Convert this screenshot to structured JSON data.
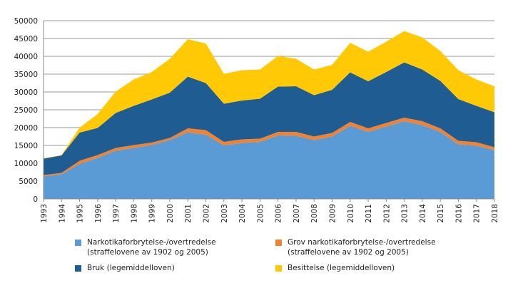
{
  "chart_data": {
    "type": "area",
    "stacked": true,
    "title": "",
    "xlabel": "",
    "ylabel": "",
    "ylim": [
      0,
      50000
    ],
    "yticks": [
      0,
      5000,
      10000,
      15000,
      20000,
      25000,
      30000,
      35000,
      40000,
      45000,
      50000
    ],
    "ytick_labels": [
      "0",
      "5000",
      "10000",
      "15000",
      "20000",
      "25000",
      "30000",
      "35000",
      "40000",
      "45000",
      "50000"
    ],
    "grid": "horizontal",
    "legend_position": "bottom",
    "x": [
      "1993",
      "1994",
      "1995",
      "1996",
      "1997",
      "1998",
      "1999",
      "2000",
      "2001",
      "2002",
      "2003",
      "2004",
      "2005",
      "2006",
      "2007",
      "2008",
      "2009",
      "2010",
      "2011",
      "2012",
      "2013",
      "2014",
      "2015",
      "2016",
      "2017",
      "2018"
    ],
    "series": [
      {
        "name": "Narkotikaforbrytelse-/overtredelse (straffelovene av 1902 og 2005)",
        "legend_lines": [
          "Narkotikaforbrytelse-/overtredelse",
          "(straffelovene av 1902 og 2005)"
        ],
        "color": "#5B9BD5",
        "values": [
          6300,
          6900,
          9800,
          11500,
          13500,
          14300,
          15100,
          16500,
          18700,
          18000,
          15000,
          15700,
          16000,
          17800,
          17700,
          16500,
          17500,
          20500,
          18800,
          20300,
          21800,
          20700,
          18800,
          15300,
          14900,
          13700
        ]
      },
      {
        "name": "Grov narkotikaforbrytelse-/overtredelse (straffelovene av 1902 og 2005)",
        "legend_lines": [
          "Grov narkotikaforbrytelse-/overtredelse",
          "(straffelovene av 1902 og 2005)"
        ],
        "color": "#F08232",
        "values": [
          400,
          400,
          900,
          800,
          800,
          800,
          700,
          600,
          1100,
          1300,
          1000,
          1000,
          900,
          1000,
          1100,
          1000,
          1000,
          1100,
          1000,
          1000,
          1000,
          1100,
          1000,
          1000,
          1000,
          800
        ]
      },
      {
        "name": "Bruk (legemiddelloven)",
        "legend_lines": [
          "Bruk (legemiddelloven)"
        ],
        "color": "#1F5C92",
        "values": [
          4600,
          4900,
          7900,
          7600,
          9800,
          11000,
          12100,
          12700,
          14500,
          13200,
          10700,
          10900,
          11200,
          12700,
          12800,
          11600,
          12100,
          13900,
          13200,
          14300,
          15500,
          14500,
          13300,
          11700,
          10200,
          9800
        ]
      },
      {
        "name": "Besittelse (legemiddelloven)",
        "legend_lines": [
          "Besittelse (legemiddelloven)"
        ],
        "color": "#FFCA05",
        "values": [
          100,
          100,
          1400,
          3900,
          6000,
          7400,
          7700,
          9500,
          10500,
          11100,
          8400,
          8500,
          8200,
          8600,
          7700,
          7200,
          7000,
          8300,
          8300,
          8500,
          8800,
          9000,
          8400,
          8100,
          7400,
          7300
        ]
      }
    ]
  }
}
